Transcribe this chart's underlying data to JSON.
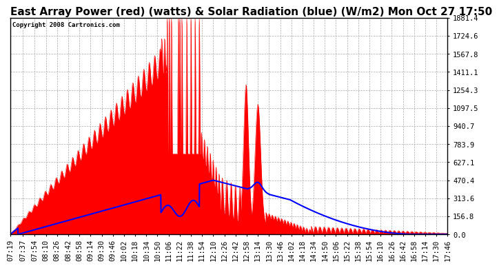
{
  "title": "East Array Power (red) (watts) & Solar Radiation (blue) (W/m2) Mon Oct 27 17:50",
  "copyright_text": "Copyright 2008 Cartronics.com",
  "y_ticks": [
    0.0,
    156.8,
    313.6,
    470.4,
    627.1,
    783.9,
    940.7,
    1097.5,
    1254.3,
    1411.1,
    1567.8,
    1724.6,
    1881.4
  ],
  "y_max": 1881.4,
  "y_min": 0.0,
  "bg_color": "#ffffff",
  "plot_bg_color": "#ffffff",
  "grid_color": "#aaaaaa",
  "title_fontsize": 11,
  "tick_fontsize": 7.5,
  "red_color": "#ff0000",
  "blue_color": "#0000ff",
  "fill_alpha": 1.0,
  "x_labels": [
    "07:19",
    "07:37",
    "07:54",
    "08:10",
    "08:26",
    "08:42",
    "08:58",
    "09:14",
    "09:30",
    "09:46",
    "10:02",
    "10:18",
    "10:34",
    "10:50",
    "11:06",
    "11:22",
    "11:38",
    "11:54",
    "12:10",
    "12:26",
    "12:42",
    "12:58",
    "13:14",
    "13:30",
    "13:46",
    "14:02",
    "14:18",
    "14:34",
    "14:50",
    "15:06",
    "15:22",
    "15:38",
    "15:54",
    "16:10",
    "16:26",
    "16:42",
    "16:58",
    "17:14",
    "17:30",
    "17:46"
  ]
}
